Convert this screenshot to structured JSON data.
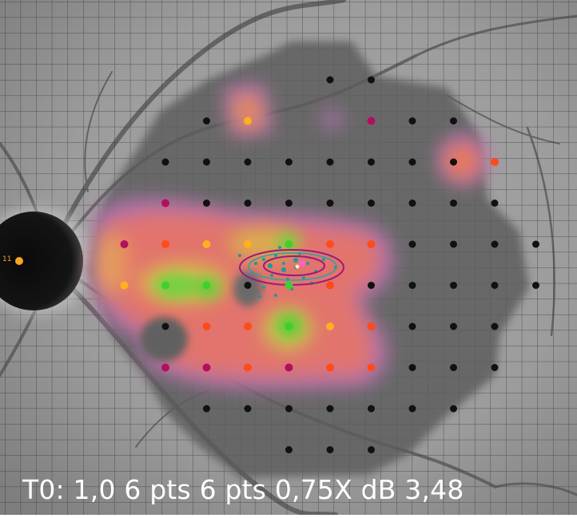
{
  "caption": "T0: 1,0 6 pts 6 pts 0,75X dB 3,48",
  "blindspot_label": "11",
  "point_colors": {
    "black": "#111111",
    "magenta": "#b0105e",
    "orange_red": "#ff4a1a",
    "amber": "#ffb020",
    "green": "#3fcf2f"
  },
  "test_points": [
    {
      "col": 4,
      "row": 0,
      "c": "black"
    },
    {
      "col": 5,
      "row": 0,
      "c": "black"
    },
    {
      "col": 1,
      "row": 1,
      "c": "black"
    },
    {
      "col": 2,
      "row": 1,
      "c": "amber"
    },
    {
      "col": 5,
      "row": 1,
      "c": "magenta"
    },
    {
      "col": 6,
      "row": 1,
      "c": "black"
    },
    {
      "col": 7,
      "row": 1,
      "c": "black"
    },
    {
      "col": 0,
      "row": 2,
      "c": "black"
    },
    {
      "col": 1,
      "row": 2,
      "c": "black"
    },
    {
      "col": 2,
      "row": 2,
      "c": "black"
    },
    {
      "col": 3,
      "row": 2,
      "c": "black"
    },
    {
      "col": 4,
      "row": 2,
      "c": "black"
    },
    {
      "col": 5,
      "row": 2,
      "c": "black"
    },
    {
      "col": 6,
      "row": 2,
      "c": "black"
    },
    {
      "col": 7,
      "row": 2,
      "c": "black"
    },
    {
      "col": 8,
      "row": 2,
      "c": "orange_red"
    },
    {
      "col": 0,
      "row": 3,
      "c": "magenta"
    },
    {
      "col": 1,
      "row": 3,
      "c": "black"
    },
    {
      "col": 2,
      "row": 3,
      "c": "black"
    },
    {
      "col": 3,
      "row": 3,
      "c": "black"
    },
    {
      "col": 4,
      "row": 3,
      "c": "black"
    },
    {
      "col": 5,
      "row": 3,
      "c": "black"
    },
    {
      "col": 6,
      "row": 3,
      "c": "black"
    },
    {
      "col": 7,
      "row": 3,
      "c": "black"
    },
    {
      "col": 8,
      "row": 3,
      "c": "black"
    },
    {
      "col": -1,
      "row": 4,
      "c": "magenta"
    },
    {
      "col": 0,
      "row": 4,
      "c": "orange_red"
    },
    {
      "col": 1,
      "row": 4,
      "c": "amber"
    },
    {
      "col": 2,
      "row": 4,
      "c": "amber"
    },
    {
      "col": 3,
      "row": 4,
      "c": "green"
    },
    {
      "col": 4,
      "row": 4,
      "c": "orange_red"
    },
    {
      "col": 5,
      "row": 4,
      "c": "orange_red"
    },
    {
      "col": 6,
      "row": 4,
      "c": "black"
    },
    {
      "col": 7,
      "row": 4,
      "c": "black"
    },
    {
      "col": 8,
      "row": 4,
      "c": "black"
    },
    {
      "col": 9,
      "row": 4,
      "c": "black"
    },
    {
      "col": -1,
      "row": 5,
      "c": "amber"
    },
    {
      "col": 0,
      "row": 5,
      "c": "green"
    },
    {
      "col": 1,
      "row": 5,
      "c": "green"
    },
    {
      "col": 2,
      "row": 5,
      "c": "black"
    },
    {
      "col": 3,
      "row": 5,
      "c": "green"
    },
    {
      "col": 4,
      "row": 5,
      "c": "orange_red"
    },
    {
      "col": 5,
      "row": 5,
      "c": "black"
    },
    {
      "col": 6,
      "row": 5,
      "c": "black"
    },
    {
      "col": 7,
      "row": 5,
      "c": "black"
    },
    {
      "col": 8,
      "row": 5,
      "c": "black"
    },
    {
      "col": 9,
      "row": 5,
      "c": "black"
    },
    {
      "col": 0,
      "row": 6,
      "c": "black"
    },
    {
      "col": 1,
      "row": 6,
      "c": "orange_red"
    },
    {
      "col": 2,
      "row": 6,
      "c": "orange_red"
    },
    {
      "col": 3,
      "row": 6,
      "c": "green"
    },
    {
      "col": 4,
      "row": 6,
      "c": "amber"
    },
    {
      "col": 5,
      "row": 6,
      "c": "orange_red"
    },
    {
      "col": 6,
      "row": 6,
      "c": "black"
    },
    {
      "col": 7,
      "row": 6,
      "c": "black"
    },
    {
      "col": 8,
      "row": 6,
      "c": "black"
    },
    {
      "col": 0,
      "row": 7,
      "c": "magenta"
    },
    {
      "col": 1,
      "row": 7,
      "c": "magenta"
    },
    {
      "col": 2,
      "row": 7,
      "c": "orange_red"
    },
    {
      "col": 3,
      "row": 7,
      "c": "magenta"
    },
    {
      "col": 4,
      "row": 7,
      "c": "orange_red"
    },
    {
      "col": 5,
      "row": 7,
      "c": "orange_red"
    },
    {
      "col": 6,
      "row": 7,
      "c": "black"
    },
    {
      "col": 7,
      "row": 7,
      "c": "black"
    },
    {
      "col": 8,
      "row": 7,
      "c": "black"
    },
    {
      "col": 1,
      "row": 8,
      "c": "black"
    },
    {
      "col": 2,
      "row": 8,
      "c": "black"
    },
    {
      "col": 3,
      "row": 8,
      "c": "black"
    },
    {
      "col": 4,
      "row": 8,
      "c": "black"
    },
    {
      "col": 5,
      "row": 8,
      "c": "black"
    },
    {
      "col": 6,
      "row": 8,
      "c": "black"
    },
    {
      "col": 7,
      "row": 8,
      "c": "black"
    },
    {
      "col": 3,
      "row": 9,
      "c": "black"
    },
    {
      "col": 4,
      "row": 9,
      "c": "black"
    },
    {
      "col": 5,
      "row": 9,
      "c": "black"
    }
  ]
}
